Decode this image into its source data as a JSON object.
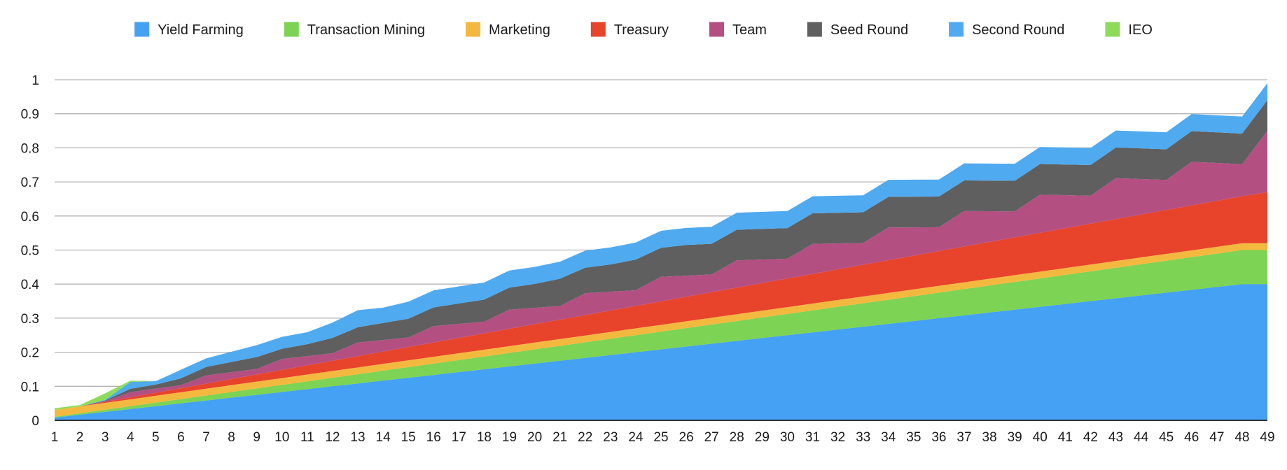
{
  "chart_data": {
    "type": "area",
    "stacked": true,
    "title": "",
    "xlabel": "",
    "ylabel": "",
    "x": [
      1,
      2,
      3,
      4,
      5,
      6,
      7,
      8,
      9,
      10,
      11,
      12,
      13,
      14,
      15,
      16,
      17,
      18,
      19,
      20,
      21,
      22,
      23,
      24,
      25,
      26,
      27,
      28,
      29,
      30,
      31,
      32,
      33,
      34,
      35,
      36,
      37,
      38,
      39,
      40,
      41,
      42,
      43,
      44,
      45,
      46,
      47,
      48,
      49
    ],
    "ylim": [
      0,
      1
    ],
    "yticks": [
      0,
      0.1,
      0.2,
      0.3,
      0.4,
      0.5,
      0.6,
      0.7,
      0.8,
      0.9,
      1
    ],
    "ytick_labels": [
      "0",
      "0.1",
      "0.2",
      "0.3",
      "0.4",
      "0.5",
      "0.6",
      "0.7",
      "0.8",
      "0.9",
      "1"
    ],
    "grid": true,
    "legend_position": "top",
    "series": [
      {
        "name": "Yield Farming",
        "color": "#45A1F3",
        "values": [
          0.0083,
          0.0167,
          0.025,
          0.0333,
          0.0417,
          0.05,
          0.0583,
          0.0667,
          0.075,
          0.0833,
          0.0917,
          0.1,
          0.1083,
          0.1167,
          0.125,
          0.1333,
          0.1417,
          0.15,
          0.1583,
          0.1667,
          0.175,
          0.1833,
          0.1917,
          0.2,
          0.2083,
          0.2167,
          0.225,
          0.2333,
          0.2417,
          0.25,
          0.2583,
          0.2667,
          0.275,
          0.2833,
          0.2917,
          0.3,
          0.3083,
          0.3167,
          0.325,
          0.3333,
          0.3417,
          0.35,
          0.3583,
          0.3667,
          0.375,
          0.3833,
          0.3917,
          0.4,
          0.4
        ]
      },
      {
        "name": "Transaction Mining",
        "color": "#7DD353",
        "values": [
          0.0021,
          0.0042,
          0.0063,
          0.0083,
          0.0104,
          0.0125,
          0.0146,
          0.0167,
          0.0188,
          0.0208,
          0.0229,
          0.025,
          0.0271,
          0.0292,
          0.0313,
          0.0333,
          0.0354,
          0.0375,
          0.0396,
          0.0417,
          0.0438,
          0.0458,
          0.0479,
          0.05,
          0.0521,
          0.0542,
          0.0563,
          0.0583,
          0.0604,
          0.0625,
          0.0646,
          0.0667,
          0.0688,
          0.0708,
          0.0729,
          0.075,
          0.0771,
          0.0792,
          0.0813,
          0.0833,
          0.0854,
          0.0875,
          0.0896,
          0.0917,
          0.0938,
          0.0958,
          0.0979,
          0.1,
          0.1
        ]
      },
      {
        "name": "Marketing",
        "color": "#F3B93F",
        "values": [
          0.02,
          0.02,
          0.02,
          0.02,
          0.02,
          0.02,
          0.02,
          0.02,
          0.02,
          0.02,
          0.02,
          0.02,
          0.02,
          0.02,
          0.02,
          0.02,
          0.02,
          0.02,
          0.02,
          0.02,
          0.02,
          0.02,
          0.02,
          0.02,
          0.02,
          0.02,
          0.02,
          0.02,
          0.02,
          0.02,
          0.02,
          0.02,
          0.02,
          0.02,
          0.02,
          0.02,
          0.02,
          0.02,
          0.02,
          0.02,
          0.02,
          0.02,
          0.02,
          0.02,
          0.02,
          0.02,
          0.02,
          0.02,
          0.02
        ]
      },
      {
        "name": "Treasury",
        "color": "#E8432B",
        "values": [
          0,
          0,
          0.003,
          0.006,
          0.009,
          0.012,
          0.015,
          0.018,
          0.021,
          0.024,
          0.027,
          0.03,
          0.033,
          0.036,
          0.039,
          0.042,
          0.045,
          0.048,
          0.051,
          0.054,
          0.057,
          0.06,
          0.063,
          0.066,
          0.069,
          0.072,
          0.075,
          0.078,
          0.081,
          0.084,
          0.087,
          0.09,
          0.093,
          0.096,
          0.099,
          0.102,
          0.105,
          0.108,
          0.111,
          0.114,
          0.117,
          0.12,
          0.123,
          0.126,
          0.129,
          0.132,
          0.135,
          0.138,
          0.15
        ]
      },
      {
        "name": "Team",
        "color": "#B44F82",
        "values": [
          0,
          0,
          0.002,
          0.015,
          0.012,
          0.009,
          0.024,
          0.02,
          0.016,
          0.032,
          0.027,
          0.022,
          0.04,
          0.034,
          0.028,
          0.048,
          0.041,
          0.034,
          0.056,
          0.048,
          0.04,
          0.064,
          0.055,
          0.046,
          0.072,
          0.062,
          0.052,
          0.08,
          0.069,
          0.058,
          0.088,
          0.076,
          0.064,
          0.096,
          0.083,
          0.07,
          0.104,
          0.09,
          0.076,
          0.112,
          0.097,
          0.082,
          0.12,
          0.104,
          0.088,
          0.128,
          0.111,
          0.094,
          0.18
        ]
      },
      {
        "name": "Seed Round",
        "color": "#5F5F5F",
        "values": [
          0,
          0,
          0.002,
          0.01,
          0.012,
          0.02,
          0.025,
          0.03,
          0.035,
          0.03,
          0.035,
          0.045,
          0.045,
          0.05,
          0.055,
          0.055,
          0.06,
          0.065,
          0.065,
          0.07,
          0.08,
          0.075,
          0.08,
          0.09,
          0.085,
          0.09,
          0.09,
          0.09,
          0.09,
          0.09,
          0.09,
          0.09,
          0.09,
          0.09,
          0.09,
          0.09,
          0.09,
          0.09,
          0.09,
          0.09,
          0.09,
          0.09,
          0.09,
          0.09,
          0.09,
          0.09,
          0.09,
          0.09,
          0.09
        ]
      },
      {
        "name": "Second Round",
        "color": "#4FAAF0",
        "values": [
          0,
          0,
          0.002,
          0.02,
          0.01,
          0.025,
          0.025,
          0.03,
          0.035,
          0.035,
          0.035,
          0.045,
          0.05,
          0.045,
          0.05,
          0.05,
          0.05,
          0.05,
          0.05,
          0.05,
          0.05,
          0.05,
          0.05,
          0.05,
          0.05,
          0.05,
          0.05,
          0.05,
          0.05,
          0.05,
          0.05,
          0.05,
          0.05,
          0.05,
          0.05,
          0.05,
          0.05,
          0.05,
          0.05,
          0.05,
          0.05,
          0.05,
          0.05,
          0.05,
          0.05,
          0.05,
          0.05,
          0.05,
          0.05
        ]
      },
      {
        "name": "IEO",
        "color": "#8EDB5C",
        "values": [
          0.005,
          0.004,
          0.019,
          0.004,
          0,
          0,
          0,
          0,
          0,
          0,
          0,
          0,
          0,
          0,
          0,
          0,
          0,
          0,
          0,
          0,
          0,
          0,
          0,
          0,
          0,
          0,
          0,
          0,
          0,
          0,
          0,
          0,
          0,
          0,
          0,
          0,
          0,
          0,
          0,
          0,
          0,
          0,
          0,
          0,
          0,
          0,
          0,
          0,
          0
        ]
      }
    ]
  }
}
